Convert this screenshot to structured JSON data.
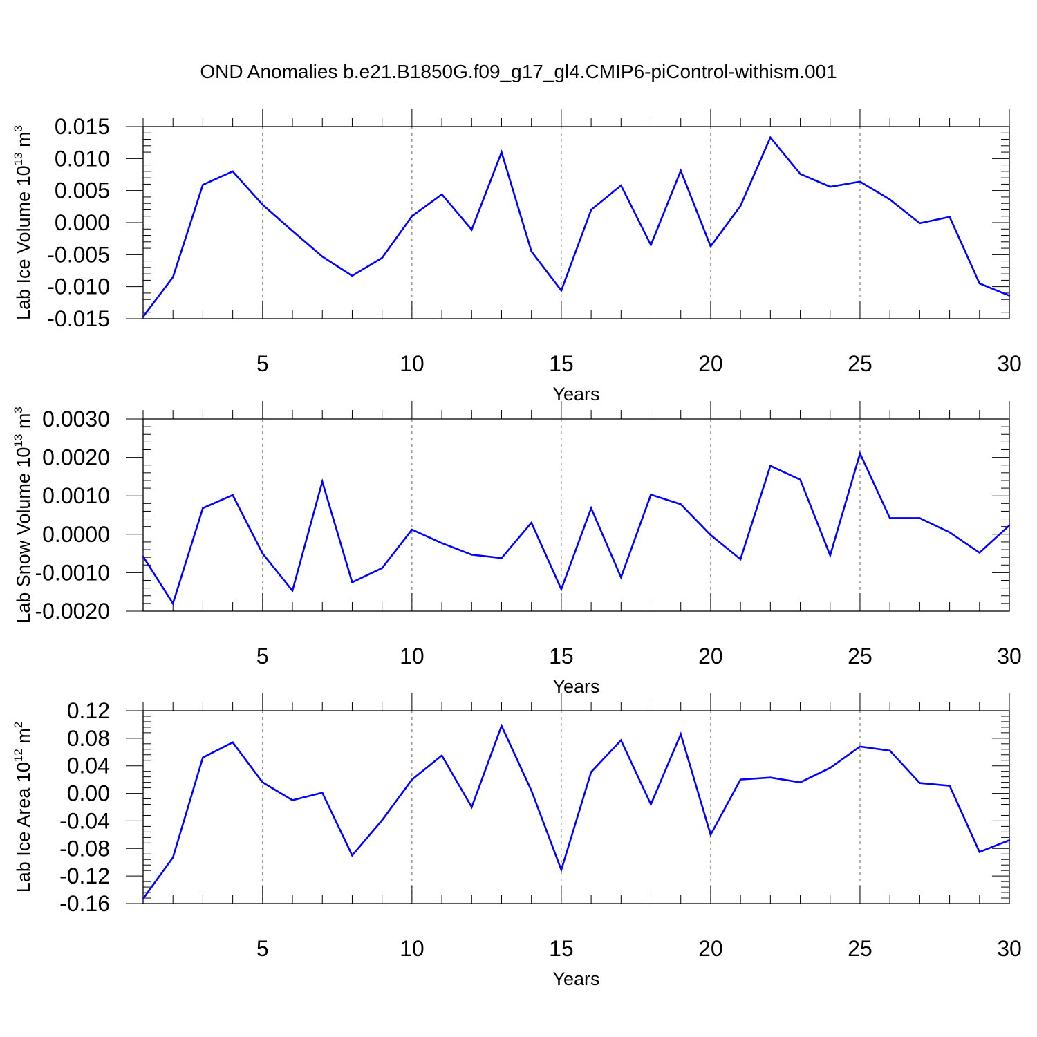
{
  "title": "OND Anomalies b.e21.B1850G.f09_g17_gl4.CMIP6-piControl-withism.001",
  "colors": {
    "series": "#0000ff",
    "axis": "#000000",
    "grid": "#666666"
  },
  "chart_data": [
    {
      "type": "line",
      "ylabel": "Lab Ice Volume 10",
      "ylabel_exp": "13",
      "ylabel_unit": " m",
      "ylabel_unit_exp": "3",
      "xlabel": "Years",
      "xlim": [
        1,
        30
      ],
      "ylim": [
        -0.015,
        0.015
      ],
      "yticks": [
        -0.015,
        -0.01,
        -0.005,
        0.0,
        0.005,
        0.01,
        0.015
      ],
      "ytick_labels": [
        "-0.015",
        "-0.010",
        "-0.005",
        "0.000",
        "0.005",
        "0.010",
        "0.015"
      ],
      "xticks": [
        5,
        10,
        15,
        20,
        25,
        30
      ],
      "xtick_labels": [
        "5",
        "10",
        "15",
        "20",
        "25",
        "30"
      ],
      "x": [
        1,
        2,
        3,
        4,
        5,
        6,
        7,
        8,
        9,
        10,
        11,
        12,
        13,
        14,
        15,
        16,
        17,
        18,
        19,
        20,
        21,
        22,
        23,
        24,
        25,
        26,
        27,
        28,
        29,
        30
      ],
      "values": [
        -0.0147,
        -0.0085,
        0.0059,
        0.008,
        0.0028,
        -0.0013,
        -0.0053,
        -0.0083,
        -0.0055,
        0.001,
        0.0044,
        -0.0011,
        0.011,
        -0.0045,
        -0.0106,
        0.002,
        0.0058,
        -0.0035,
        0.0081,
        -0.0037,
        0.0026,
        0.0133,
        0.0076,
        0.0056,
        0.0064,
        0.0036,
        -0.0001,
        0.0009,
        -0.0095,
        -0.0114
      ]
    },
    {
      "type": "line",
      "ylabel": "Lab Snow Volume 10",
      "ylabel_exp": "13",
      "ylabel_unit": " m",
      "ylabel_unit_exp": "3",
      "xlabel": "Years",
      "xlim": [
        1,
        30
      ],
      "ylim": [
        -0.002,
        0.003
      ],
      "yticks": [
        -0.002,
        -0.001,
        0.0,
        0.001,
        0.002,
        0.003
      ],
      "ytick_labels": [
        "-0.0020",
        "-0.0010",
        "0.0000",
        "0.0010",
        "0.0020",
        "0.0030"
      ],
      "xticks": [
        5,
        10,
        15,
        20,
        25,
        30
      ],
      "xtick_labels": [
        "5",
        "10",
        "15",
        "20",
        "25",
        "30"
      ],
      "x": [
        1,
        2,
        3,
        4,
        5,
        6,
        7,
        8,
        9,
        10,
        11,
        12,
        13,
        14,
        15,
        16,
        17,
        18,
        19,
        20,
        21,
        22,
        23,
        24,
        25,
        26,
        27,
        28,
        29,
        30
      ],
      "values": [
        -0.00058,
        -0.0018,
        0.00068,
        0.00102,
        -0.0005,
        -0.00147,
        0.00137,
        -0.00125,
        -0.00088,
        0.00012,
        -0.00023,
        -0.00053,
        -0.00062,
        0.0003,
        -0.00143,
        0.00068,
        -0.00112,
        0.00103,
        0.00078,
        -2e-05,
        -0.00065,
        0.00178,
        0.00142,
        -0.00055,
        0.0021,
        0.00042,
        0.00042,
        5e-05,
        -0.00048,
        0.00023
      ]
    },
    {
      "type": "line",
      "ylabel": "Lab Ice Area 10",
      "ylabel_exp": "12",
      "ylabel_unit": " m",
      "ylabel_unit_exp": "2",
      "xlabel": "Years",
      "xlim": [
        1,
        30
      ],
      "ylim": [
        -0.16,
        0.12
      ],
      "yticks": [
        -0.16,
        -0.12,
        -0.08,
        -0.04,
        0.0,
        0.04,
        0.08,
        0.12
      ],
      "ytick_labels": [
        "-0.16",
        "-0.12",
        "-0.08",
        "-0.04",
        "0.00",
        "0.04",
        "0.08",
        "0.12"
      ],
      "xticks": [
        5,
        10,
        15,
        20,
        25,
        30
      ],
      "xtick_labels": [
        "5",
        "10",
        "15",
        "20",
        "25",
        "30"
      ],
      "x": [
        1,
        2,
        3,
        4,
        5,
        6,
        7,
        8,
        9,
        10,
        11,
        12,
        13,
        14,
        15,
        16,
        17,
        18,
        19,
        20,
        21,
        22,
        23,
        24,
        25,
        26,
        27,
        28,
        29,
        30
      ],
      "values": [
        -0.153,
        -0.093,
        0.052,
        0.074,
        0.016,
        -0.01,
        0.001,
        -0.09,
        -0.039,
        0.02,
        0.055,
        -0.02,
        0.098,
        0.004,
        -0.111,
        0.031,
        0.077,
        -0.016,
        0.086,
        -0.06,
        0.02,
        0.023,
        0.016,
        0.037,
        0.068,
        0.062,
        0.015,
        0.011,
        -0.085,
        -0.068
      ]
    }
  ]
}
